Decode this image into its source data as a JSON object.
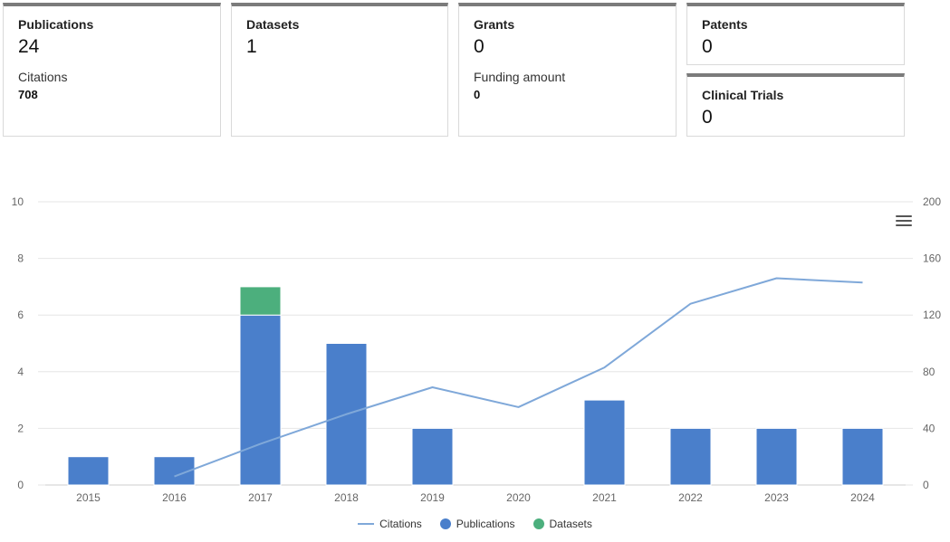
{
  "cards": {
    "publications": {
      "label": "Publications",
      "value": "24",
      "sub_label": "Citations",
      "sub_value": "708"
    },
    "datasets": {
      "label": "Datasets",
      "value": "1"
    },
    "grants": {
      "label": "Grants",
      "value": "0",
      "sub_label": "Funding amount",
      "sub_value": "0"
    },
    "patents": {
      "label": "Patents",
      "value": "0"
    },
    "clinical_trials": {
      "label": "Clinical Trials",
      "value": "0"
    }
  },
  "chart_data": {
    "type": "bar",
    "categories": [
      "2015",
      "2016",
      "2017",
      "2018",
      "2019",
      "2020",
      "2021",
      "2022",
      "2023",
      "2024"
    ],
    "series": [
      {
        "name": "Publications",
        "kind": "bar",
        "axis": "left",
        "color": "#4a7fcb",
        "values": [
          1,
          1,
          6,
          5,
          2,
          0,
          3,
          2,
          2,
          2
        ]
      },
      {
        "name": "Datasets",
        "kind": "bar",
        "axis": "left",
        "color": "#4caf7d",
        "values": [
          0,
          0,
          1,
          0,
          0,
          0,
          0,
          0,
          0,
          0
        ]
      },
      {
        "name": "Citations",
        "kind": "line",
        "axis": "right",
        "color": "#7fa8d9",
        "values": [
          null,
          6,
          29,
          50,
          69,
          55,
          83,
          128,
          146,
          143
        ]
      }
    ],
    "stacked": true,
    "ylim": [
      0,
      10
    ],
    "yticks": [
      "0",
      "2",
      "4",
      "6",
      "8",
      "10"
    ],
    "y2lim": [
      0,
      200
    ],
    "y2ticks": [
      "0",
      "40",
      "80",
      "120",
      "160",
      "200"
    ],
    "grid": true,
    "legend_position": "bottom-center"
  },
  "colors": {
    "grid": "#e6e6e6",
    "axis_text": "#666666",
    "card_border_top": "#7b7b7b"
  },
  "icons": {
    "chart_menu": "hamburger-menu-icon"
  }
}
